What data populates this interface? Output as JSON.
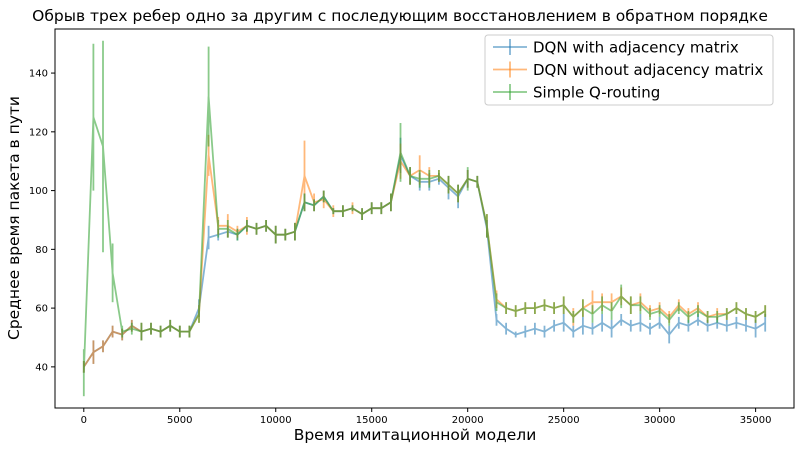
{
  "chart_data": {
    "type": "line",
    "title": "Обрыв трех ребер одно за другим с последующим восстановлением в обратном порядке",
    "xlabel": "Время имитационной модели",
    "ylabel": "Среднее время пакета в пути",
    "xlim": [
      -1500,
      37000
    ],
    "ylim": [
      26,
      155
    ],
    "xticks": [
      0,
      5000,
      10000,
      15000,
      20000,
      25000,
      30000,
      35000
    ],
    "yticks": [
      40,
      60,
      80,
      100,
      120,
      140
    ],
    "legend_position": "top-right",
    "grid": false,
    "error_bars": true,
    "series": [
      {
        "name": "DQN with adjacency matrix",
        "color": "#1f77b4",
        "points": [
          [
            0,
            40,
            2
          ],
          [
            500,
            45,
            4
          ],
          [
            1000,
            47,
            2
          ],
          [
            1500,
            52,
            2
          ],
          [
            2000,
            51,
            2
          ],
          [
            2500,
            54,
            2
          ],
          [
            3000,
            52,
            3
          ],
          [
            3500,
            53,
            2
          ],
          [
            4000,
            52,
            2
          ],
          [
            4500,
            54,
            2
          ],
          [
            5000,
            52,
            2
          ],
          [
            5500,
            52,
            2
          ],
          [
            6000,
            60,
            3
          ],
          [
            6500,
            84,
            4
          ],
          [
            7000,
            85,
            2
          ],
          [
            7500,
            86,
            2
          ],
          [
            8000,
            85,
            2
          ],
          [
            8500,
            88,
            2
          ],
          [
            9000,
            87,
            2
          ],
          [
            9500,
            88,
            2
          ],
          [
            10000,
            85,
            3
          ],
          [
            10500,
            85,
            2
          ],
          [
            11000,
            86,
            3
          ],
          [
            11500,
            96,
            3
          ],
          [
            12000,
            95,
            2
          ],
          [
            12500,
            98,
            2
          ],
          [
            13000,
            93,
            1
          ],
          [
            13500,
            93,
            2
          ],
          [
            14000,
            94,
            1
          ],
          [
            14500,
            92,
            2
          ],
          [
            15000,
            94,
            2
          ],
          [
            15500,
            94,
            2
          ],
          [
            16000,
            96,
            3
          ],
          [
            16500,
            112,
            6
          ],
          [
            17000,
            105,
            3
          ],
          [
            17500,
            103,
            3
          ],
          [
            18000,
            103,
            3
          ],
          [
            18500,
            104,
            2
          ],
          [
            19000,
            101,
            4
          ],
          [
            19500,
            98,
            4
          ],
          [
            20000,
            104,
            3
          ],
          [
            20500,
            103,
            2
          ],
          [
            21000,
            87,
            3
          ],
          [
            21500,
            56,
            2
          ],
          [
            22000,
            53,
            2
          ],
          [
            22500,
            51,
            1
          ],
          [
            23000,
            52,
            2
          ],
          [
            23500,
            53,
            2
          ],
          [
            24000,
            52,
            2
          ],
          [
            24500,
            54,
            2
          ],
          [
            25000,
            55,
            3
          ],
          [
            25500,
            52,
            2
          ],
          [
            26000,
            54,
            3
          ],
          [
            26500,
            53,
            2
          ],
          [
            27000,
            55,
            3
          ],
          [
            27500,
            53,
            3
          ],
          [
            28000,
            56,
            2
          ],
          [
            28500,
            54,
            2
          ],
          [
            29000,
            55,
            3
          ],
          [
            29500,
            53,
            2
          ],
          [
            30000,
            55,
            2
          ],
          [
            30500,
            51,
            3
          ],
          [
            31000,
            55,
            2
          ],
          [
            31500,
            54,
            2
          ],
          [
            32000,
            56,
            2
          ],
          [
            32500,
            54,
            2
          ],
          [
            33000,
            55,
            2
          ],
          [
            33500,
            54,
            2
          ],
          [
            34000,
            55,
            2
          ],
          [
            34500,
            54,
            2
          ],
          [
            35000,
            53,
            3
          ],
          [
            35500,
            55,
            3
          ]
        ]
      },
      {
        "name": "DQN without adjacency matrix",
        "color": "#ff7f0e",
        "points": [
          [
            0,
            40,
            2
          ],
          [
            500,
            45,
            4
          ],
          [
            1000,
            47,
            2
          ],
          [
            1500,
            52,
            2
          ],
          [
            2000,
            51,
            2
          ],
          [
            2500,
            54,
            2
          ],
          [
            3000,
            52,
            3
          ],
          [
            3500,
            53,
            2
          ],
          [
            4000,
            52,
            2
          ],
          [
            4500,
            54,
            2
          ],
          [
            5000,
            52,
            2
          ],
          [
            5500,
            52,
            2
          ],
          [
            6000,
            58,
            3
          ],
          [
            6500,
            112,
            7
          ],
          [
            7000,
            88,
            3
          ],
          [
            7500,
            88,
            4
          ],
          [
            8000,
            86,
            2
          ],
          [
            8500,
            88,
            3
          ],
          [
            9000,
            87,
            2
          ],
          [
            9500,
            88,
            2
          ],
          [
            10000,
            85,
            3
          ],
          [
            10500,
            85,
            2
          ],
          [
            11000,
            86,
            3
          ],
          [
            11500,
            105,
            12
          ],
          [
            12000,
            96,
            3
          ],
          [
            12500,
            97,
            3
          ],
          [
            13000,
            93,
            2
          ],
          [
            13500,
            93,
            2
          ],
          [
            14000,
            94,
            2
          ],
          [
            14500,
            92,
            2
          ],
          [
            15000,
            94,
            2
          ],
          [
            15500,
            94,
            2
          ],
          [
            16000,
            96,
            3
          ],
          [
            16500,
            110,
            6
          ],
          [
            17000,
            105,
            3
          ],
          [
            17500,
            107,
            5
          ],
          [
            18000,
            105,
            3
          ],
          [
            18500,
            105,
            2
          ],
          [
            19000,
            102,
            3
          ],
          [
            19500,
            99,
            3
          ],
          [
            20000,
            104,
            3
          ],
          [
            20500,
            103,
            2
          ],
          [
            21000,
            88,
            4
          ],
          [
            21500,
            63,
            3
          ],
          [
            22000,
            60,
            2
          ],
          [
            22500,
            59,
            2
          ],
          [
            23000,
            60,
            2
          ],
          [
            23500,
            60,
            2
          ],
          [
            24000,
            61,
            2
          ],
          [
            24500,
            60,
            2
          ],
          [
            25000,
            61,
            3
          ],
          [
            25500,
            57,
            3
          ],
          [
            26000,
            60,
            3
          ],
          [
            26500,
            62,
            4
          ],
          [
            27000,
            62,
            3
          ],
          [
            27500,
            62,
            3
          ],
          [
            28000,
            64,
            3
          ],
          [
            28500,
            61,
            3
          ],
          [
            29000,
            62,
            3
          ],
          [
            29500,
            59,
            2
          ],
          [
            30000,
            60,
            2
          ],
          [
            30500,
            57,
            2
          ],
          [
            31000,
            61,
            2
          ],
          [
            31500,
            58,
            2
          ],
          [
            32000,
            60,
            2
          ],
          [
            32500,
            57,
            2
          ],
          [
            33000,
            58,
            2
          ],
          [
            33500,
            58,
            2
          ],
          [
            34000,
            60,
            2
          ],
          [
            34500,
            58,
            2
          ],
          [
            35000,
            57,
            2
          ],
          [
            35500,
            59,
            2
          ]
        ]
      },
      {
        "name": "Simple Q-routing",
        "color": "#2ca02c",
        "points": [
          [
            0,
            38,
            8
          ],
          [
            500,
            125,
            25
          ],
          [
            1000,
            115,
            36
          ],
          [
            1500,
            72,
            10
          ],
          [
            2000,
            52,
            2
          ],
          [
            2500,
            53,
            2
          ],
          [
            3000,
            52,
            3
          ],
          [
            3500,
            53,
            2
          ],
          [
            4000,
            52,
            2
          ],
          [
            4500,
            54,
            2
          ],
          [
            5000,
            52,
            2
          ],
          [
            5500,
            52,
            2
          ],
          [
            6000,
            58,
            3
          ],
          [
            6500,
            132,
            17
          ],
          [
            7000,
            87,
            3
          ],
          [
            7500,
            87,
            3
          ],
          [
            8000,
            85,
            2
          ],
          [
            8500,
            88,
            2
          ],
          [
            9000,
            87,
            2
          ],
          [
            9500,
            88,
            2
          ],
          [
            10000,
            85,
            3
          ],
          [
            10500,
            85,
            2
          ],
          [
            11000,
            86,
            3
          ],
          [
            11500,
            96,
            3
          ],
          [
            12000,
            95,
            2
          ],
          [
            12500,
            98,
            2
          ],
          [
            13000,
            93,
            1
          ],
          [
            13500,
            93,
            2
          ],
          [
            14000,
            94,
            1
          ],
          [
            14500,
            92,
            2
          ],
          [
            15000,
            94,
            2
          ],
          [
            15500,
            94,
            2
          ],
          [
            16000,
            96,
            3
          ],
          [
            16500,
            113,
            10
          ],
          [
            17000,
            105,
            3
          ],
          [
            17500,
            104,
            3
          ],
          [
            18000,
            104,
            3
          ],
          [
            18500,
            105,
            2
          ],
          [
            19000,
            102,
            3
          ],
          [
            19500,
            99,
            3
          ],
          [
            20000,
            104,
            4
          ],
          [
            20500,
            103,
            2
          ],
          [
            21000,
            88,
            4
          ],
          [
            21500,
            62,
            3
          ],
          [
            22000,
            60,
            2
          ],
          [
            22500,
            59,
            2
          ],
          [
            23000,
            60,
            2
          ],
          [
            23500,
            60,
            2
          ],
          [
            24000,
            61,
            2
          ],
          [
            24500,
            60,
            2
          ],
          [
            25000,
            61,
            3
          ],
          [
            25500,
            57,
            2
          ],
          [
            26000,
            60,
            3
          ],
          [
            26500,
            58,
            3
          ],
          [
            27000,
            61,
            3
          ],
          [
            27500,
            59,
            3
          ],
          [
            28000,
            64,
            4
          ],
          [
            28500,
            61,
            3
          ],
          [
            29000,
            61,
            3
          ],
          [
            29500,
            58,
            2
          ],
          [
            30000,
            59,
            2
          ],
          [
            30500,
            56,
            2
          ],
          [
            31000,
            60,
            2
          ],
          [
            31500,
            57,
            2
          ],
          [
            32000,
            59,
            2
          ],
          [
            32500,
            57,
            2
          ],
          [
            33000,
            57,
            2
          ],
          [
            33500,
            58,
            2
          ],
          [
            34000,
            60,
            2
          ],
          [
            34500,
            58,
            2
          ],
          [
            35000,
            57,
            2
          ],
          [
            35500,
            59,
            2
          ]
        ]
      }
    ]
  }
}
